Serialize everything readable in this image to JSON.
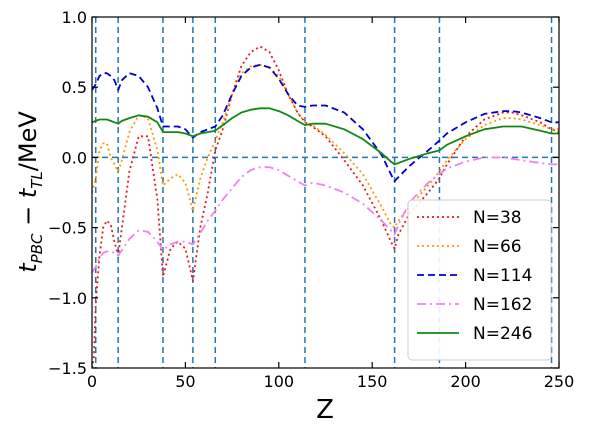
{
  "chart_data": {
    "type": "line",
    "xlabel": "Z",
    "ylabel": "t_PBC − t_TL/MeV",
    "xlim": [
      0,
      250
    ],
    "ylim": [
      -1.5,
      1.0
    ],
    "xticks": [
      0,
      50,
      100,
      150,
      200,
      250
    ],
    "xtick_labels": [
      "0",
      "50",
      "100",
      "150",
      "200",
      "250"
    ],
    "yticks": [
      -1.5,
      -1.0,
      -0.5,
      0.0,
      0.5,
      1.0
    ],
    "ytick_labels": [
      "−1.5",
      "−1.0",
      "−0.5",
      "0.0",
      "0.5",
      "1.0"
    ],
    "vertical_reference_lines": [
      2,
      14,
      38,
      54,
      66,
      114,
      162,
      186,
      246
    ],
    "horizontal_reference_line": 0.0,
    "reference_line_color": "#1f77b4",
    "legend_position": "lower-right",
    "series": [
      {
        "name": "N=38",
        "color": "#e41a1c",
        "style": "dotted",
        "x": [
          0,
          1,
          2,
          4,
          6,
          8,
          10,
          12,
          14,
          16,
          20,
          25,
          30,
          35,
          38,
          42,
          46,
          50,
          54,
          58,
          62,
          66,
          70,
          75,
          80,
          85,
          90,
          95,
          100,
          105,
          110,
          114,
          118,
          125,
          135,
          145,
          155,
          160,
          162,
          164,
          170,
          180,
          186,
          190,
          200,
          210,
          220,
          225,
          230,
          240,
          246,
          250
        ],
        "y": [
          -1.5,
          -1.42,
          -1.05,
          -0.7,
          -0.5,
          -0.45,
          -0.48,
          -0.6,
          -0.7,
          -0.5,
          -0.1,
          0.15,
          0.15,
          -0.3,
          -0.85,
          -0.65,
          -0.6,
          -0.65,
          -0.88,
          -0.5,
          -0.25,
          0.05,
          0.2,
          0.45,
          0.65,
          0.75,
          0.79,
          0.75,
          0.62,
          0.45,
          0.32,
          0.25,
          0.22,
          0.15,
          -0.02,
          -0.2,
          -0.45,
          -0.6,
          -0.65,
          -0.55,
          -0.4,
          -0.25,
          -0.15,
          -0.05,
          0.15,
          0.27,
          0.32,
          0.32,
          0.3,
          0.25,
          0.2,
          0.18
        ]
      },
      {
        "name": "N=66",
        "color": "#ff9900",
        "style": "dotted",
        "x": [
          0,
          2,
          4,
          6,
          8,
          10,
          12,
          14,
          16,
          20,
          25,
          30,
          35,
          38,
          42,
          46,
          50,
          54,
          58,
          62,
          66,
          70,
          75,
          80,
          85,
          90,
          95,
          100,
          105,
          110,
          114,
          118,
          125,
          135,
          145,
          155,
          160,
          162,
          164,
          170,
          180,
          186,
          190,
          200,
          210,
          220,
          225,
          230,
          240,
          246,
          250
        ],
        "y": [
          -0.25,
          -0.15,
          0.05,
          0.1,
          0.1,
          0.0,
          -0.05,
          -0.1,
          -0.02,
          0.18,
          0.3,
          0.28,
          0.05,
          -0.2,
          -0.15,
          -0.12,
          -0.18,
          -0.38,
          -0.15,
          0.0,
          0.12,
          0.25,
          0.45,
          0.6,
          0.65,
          0.66,
          0.64,
          0.58,
          0.45,
          0.32,
          0.25,
          0.23,
          0.16,
          0.03,
          -0.12,
          -0.35,
          -0.48,
          -0.5,
          -0.45,
          -0.35,
          -0.2,
          -0.1,
          -0.02,
          0.13,
          0.23,
          0.28,
          0.28,
          0.27,
          0.23,
          0.2,
          0.2
        ]
      },
      {
        "name": "N=114",
        "color": "#0000cc",
        "style": "dashed",
        "x": [
          0,
          2,
          4,
          6,
          8,
          10,
          12,
          14,
          16,
          20,
          25,
          30,
          35,
          38,
          42,
          46,
          50,
          54,
          58,
          62,
          66,
          70,
          75,
          80,
          85,
          90,
          95,
          100,
          105,
          110,
          114,
          118,
          125,
          135,
          145,
          155,
          160,
          162,
          164,
          170,
          180,
          186,
          190,
          200,
          210,
          220,
          225,
          230,
          240,
          246,
          250
        ],
        "y": [
          0.48,
          0.52,
          0.58,
          0.6,
          0.6,
          0.58,
          0.55,
          0.48,
          0.55,
          0.6,
          0.58,
          0.5,
          0.35,
          0.22,
          0.22,
          0.22,
          0.2,
          0.14,
          0.18,
          0.2,
          0.22,
          0.3,
          0.45,
          0.58,
          0.64,
          0.66,
          0.64,
          0.56,
          0.45,
          0.37,
          0.36,
          0.37,
          0.37,
          0.32,
          0.2,
          0.02,
          -0.12,
          -0.17,
          -0.14,
          -0.06,
          0.05,
          0.12,
          0.17,
          0.25,
          0.31,
          0.33,
          0.33,
          0.32,
          0.28,
          0.25,
          0.25
        ]
      },
      {
        "name": "N=162",
        "color": "#ee82ee",
        "style": "dashdot",
        "x": [
          0,
          2,
          4,
          6,
          8,
          10,
          12,
          14,
          16,
          20,
          25,
          30,
          35,
          38,
          42,
          46,
          50,
          54,
          58,
          62,
          66,
          70,
          75,
          80,
          85,
          90,
          95,
          100,
          105,
          110,
          114,
          118,
          125,
          135,
          145,
          155,
          160,
          162,
          164,
          170,
          180,
          186,
          190,
          200,
          210,
          220,
          225,
          230,
          240,
          246,
          250
        ],
        "y": [
          -0.82,
          -0.78,
          -0.72,
          -0.68,
          -0.67,
          -0.67,
          -0.68,
          -0.7,
          -0.66,
          -0.58,
          -0.52,
          -0.53,
          -0.6,
          -0.66,
          -0.62,
          -0.6,
          -0.6,
          -0.62,
          -0.54,
          -0.45,
          -0.38,
          -0.3,
          -0.22,
          -0.14,
          -0.09,
          -0.07,
          -0.07,
          -0.09,
          -0.13,
          -0.17,
          -0.2,
          -0.18,
          -0.2,
          -0.25,
          -0.33,
          -0.45,
          -0.52,
          -0.55,
          -0.48,
          -0.32,
          -0.18,
          -0.12,
          -0.08,
          -0.03,
          0.0,
          0.0,
          -0.01,
          -0.02,
          -0.04,
          -0.05,
          -0.05
        ]
      },
      {
        "name": "N=246",
        "color": "#118811",
        "style": "solid",
        "x": [
          0,
          2,
          4,
          6,
          8,
          10,
          12,
          14,
          16,
          20,
          25,
          30,
          35,
          38,
          42,
          46,
          50,
          54,
          58,
          62,
          66,
          70,
          75,
          80,
          85,
          90,
          95,
          100,
          105,
          110,
          114,
          118,
          125,
          135,
          145,
          155,
          160,
          162,
          164,
          170,
          180,
          186,
          190,
          200,
          210,
          220,
          225,
          230,
          240,
          246,
          250
        ],
        "y": [
          0.25,
          0.26,
          0.27,
          0.27,
          0.27,
          0.26,
          0.25,
          0.24,
          0.26,
          0.28,
          0.3,
          0.29,
          0.25,
          0.18,
          0.18,
          0.18,
          0.17,
          0.15,
          0.17,
          0.18,
          0.19,
          0.23,
          0.28,
          0.32,
          0.34,
          0.35,
          0.35,
          0.33,
          0.3,
          0.26,
          0.23,
          0.24,
          0.24,
          0.2,
          0.13,
          0.03,
          -0.03,
          -0.05,
          -0.04,
          -0.01,
          0.03,
          0.05,
          0.09,
          0.15,
          0.2,
          0.22,
          0.22,
          0.22,
          0.19,
          0.17,
          0.17
        ]
      }
    ]
  }
}
